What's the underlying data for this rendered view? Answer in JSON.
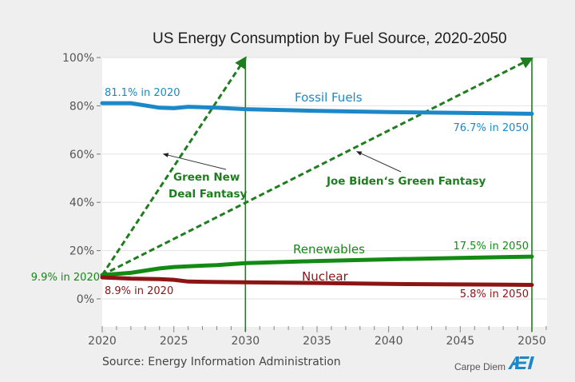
{
  "chart_data": {
    "type": "line",
    "title": "US Energy Consumption by Fuel Source, 2020-2050",
    "xlabel": "",
    "ylabel": "",
    "xlim": [
      2020,
      2051.5
    ],
    "ylim": [
      -20,
      100
    ],
    "grid": true,
    "x_ticks": [
      2020,
      2025,
      2030,
      2035,
      2040,
      2045,
      2050
    ],
    "x_tick_labels": [
      "2020",
      "2025",
      "2030",
      "2035",
      "2040",
      "2045",
      "2050"
    ],
    "y_ticks": [
      0,
      20,
      40,
      60,
      80,
      100
    ],
    "y_tick_labels": [
      "0%",
      "20%",
      "40%",
      "60%",
      "80%",
      "100%"
    ],
    "x": [
      2020,
      2022,
      2024,
      2025,
      2026,
      2028,
      2030,
      2035,
      2040,
      2045,
      2050
    ],
    "series": [
      {
        "name": "Fossil Fuels",
        "color": "#1c88c7",
        "values": [
          81.1,
          81.1,
          79.2,
          79.0,
          79.6,
          79.2,
          78.6,
          77.9,
          77.4,
          77.1,
          76.7
        ],
        "start_label": "81.1% in 2020",
        "end_label": "76.7% in 2050"
      },
      {
        "name": "Renewables",
        "color": "#138a14",
        "values": [
          9.9,
          10.8,
          12.6,
          13.2,
          13.5,
          14.0,
          14.8,
          15.7,
          16.4,
          17.0,
          17.5
        ],
        "start_label": "9.9% in 2020",
        "end_label": "17.5% in 2050"
      },
      {
        "name": "Nuclear",
        "color": "#8b1414",
        "values": [
          8.9,
          8.4,
          8.2,
          7.9,
          7.2,
          7.0,
          6.9,
          6.6,
          6.2,
          6.0,
          5.8
        ],
        "start_label": "8.9% in 2020",
        "end_label": "5.8% in 2050"
      }
    ],
    "projections": [
      {
        "name": "Green New Deal Fantasy",
        "from": [
          2020,
          9.9
        ],
        "to": [
          2030,
          100
        ],
        "style": "dashed-arrow",
        "color": "#1e7d1e"
      },
      {
        "name": "Joe Biden‘s Green Fantasy",
        "from": [
          2020,
          9.9
        ],
        "to": [
          2050,
          100
        ],
        "style": "dashed-arrow",
        "color": "#1e7d1e"
      }
    ],
    "vertical_markers": [
      2030,
      2050
    ],
    "annotations": [
      {
        "text_lines": [
          "Green New",
          "Deal Fantasy"
        ],
        "points_to": [
          2024.3,
          60
        ]
      },
      {
        "text_lines": [
          "Joe Biden‘s Green Fantasy"
        ],
        "points_to": [
          2037.8,
          61
        ]
      }
    ],
    "source": "Source: Energy Information Administration",
    "brand": {
      "text": "Carpe Diem",
      "logo": "AEI",
      "logo_color": "#1c88c7"
    }
  }
}
